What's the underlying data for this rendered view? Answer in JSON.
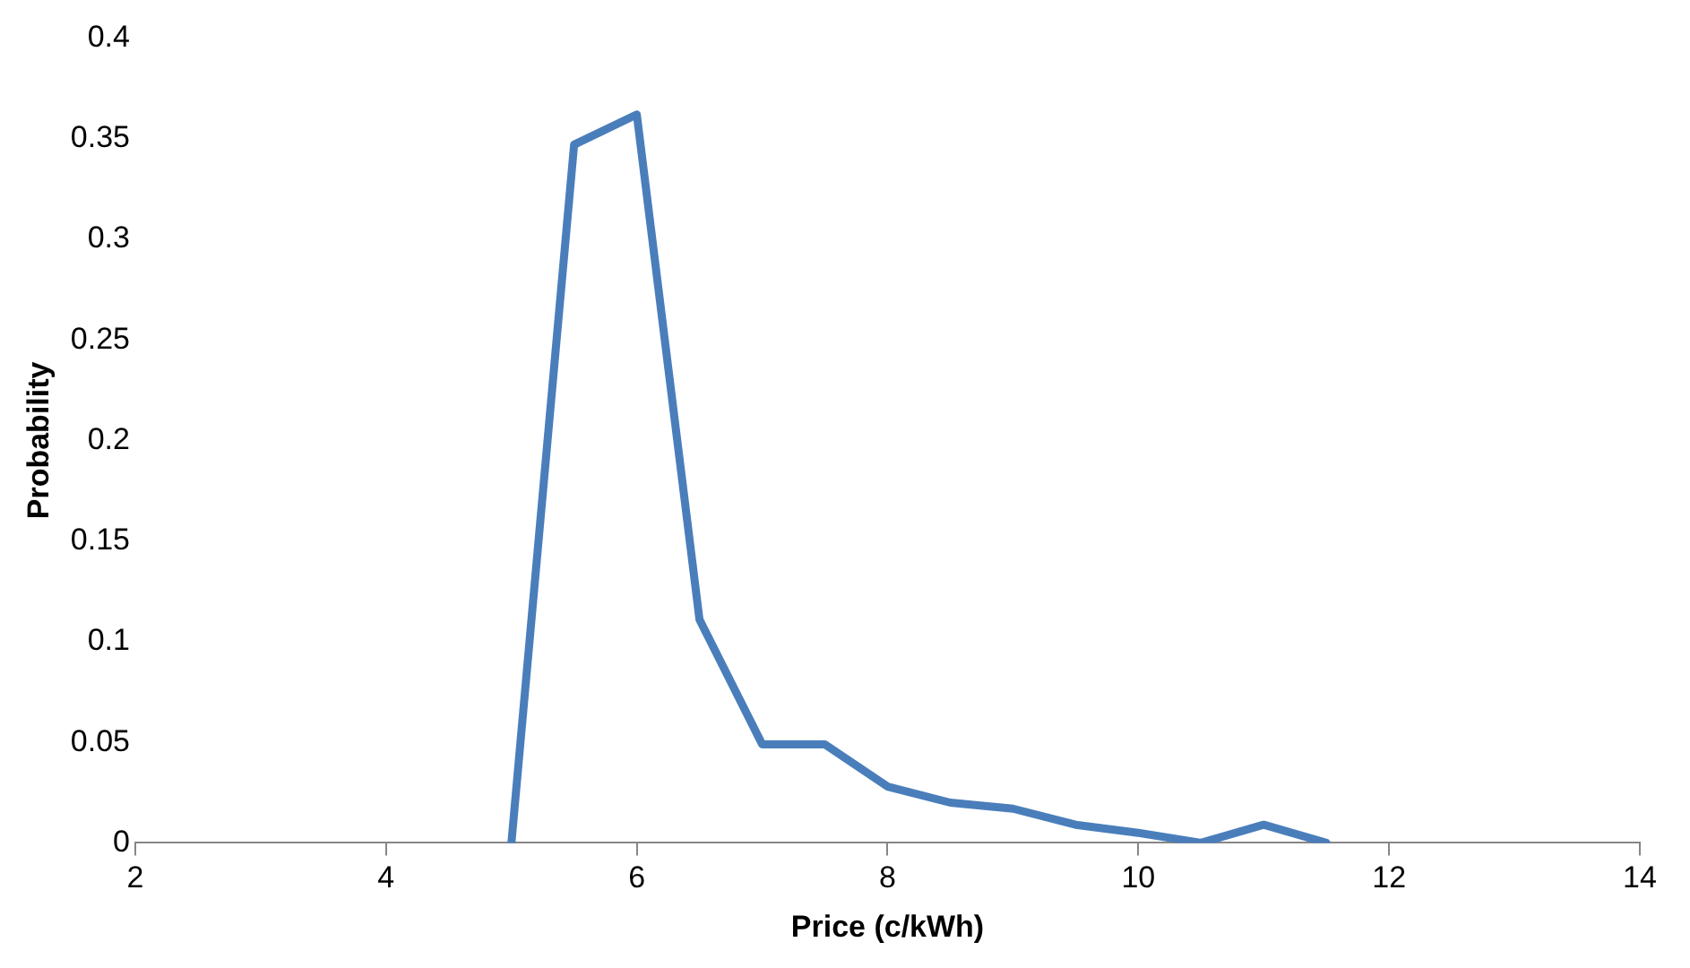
{
  "chart_data": {
    "type": "line",
    "xlabel": "Price (c/kWh)",
    "ylabel": "Probability",
    "x": [
      5,
      5.5,
      6,
      6.5,
      7,
      7.5,
      8,
      8.5,
      9,
      9.5,
      10,
      10.5,
      11,
      11.5
    ],
    "series": [
      {
        "color": "#4a7ebb",
        "values": [
          0,
          0.347,
          0.362,
          0.111,
          0.049,
          0.049,
          0.028,
          0.02,
          0.017,
          0.009,
          0.005,
          0,
          0.009,
          0
        ]
      }
    ],
    "xlim": [
      2,
      14
    ],
    "xticks": [
      2,
      4,
      6,
      8,
      10,
      12,
      14
    ],
    "ylim": [
      0,
      0.4
    ],
    "yticks": [
      0,
      0.05,
      0.1,
      0.15,
      0.2,
      0.25,
      0.3,
      0.35,
      0.4
    ],
    "grid": false,
    "legend": false,
    "marker": "none",
    "line_style": "solid"
  }
}
